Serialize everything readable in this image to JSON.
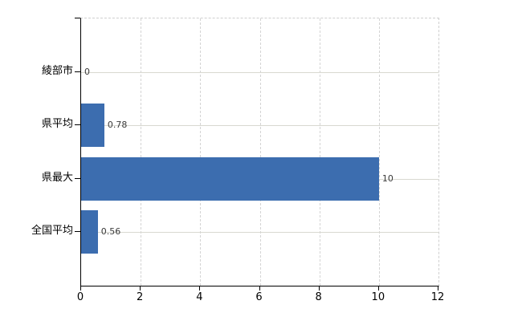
{
  "chart_data": {
    "type": "bar",
    "orientation": "horizontal",
    "title": "",
    "xlabel": "",
    "ylabel": "",
    "categories": [
      "綾部市",
      "県平均",
      "県最大",
      "全国平均"
    ],
    "values": [
      0,
      0.78,
      10,
      0.56
    ],
    "value_labels": [
      "0",
      "0.78",
      "10",
      "0.56"
    ],
    "xlim": [
      0,
      12
    ],
    "x_ticks": [
      0,
      2,
      4,
      6,
      8,
      10,
      12
    ],
    "x_tick_labels": [
      "0",
      "2",
      "4",
      "6",
      "8",
      "10",
      "12"
    ],
    "bar_color": "#3c6daf",
    "grid": true,
    "legend": "none",
    "background_color": "#ffffff",
    "axis_color": "#000000",
    "gridline_vertical_color": "#d4d4d4",
    "gridline_horizontal_color": "#d8d8d0"
  }
}
